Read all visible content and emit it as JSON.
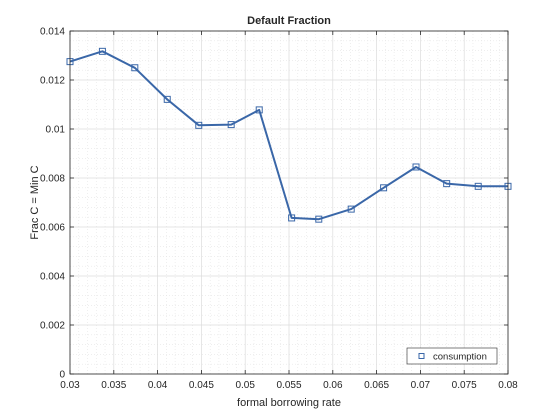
{
  "chart_data": {
    "type": "line",
    "title": "Default Fraction",
    "xlabel": "formal borrowing rate",
    "ylabel": "Frac C = Min C",
    "xlim": [
      0.03,
      0.08
    ],
    "ylim": [
      0,
      0.014
    ],
    "xticks": [
      "0.03",
      "0.035",
      "0.04",
      "0.045",
      "0.05",
      "0.055",
      "0.06",
      "0.065",
      "0.07",
      "0.075",
      "0.08"
    ],
    "yticks": [
      "0",
      "0.002",
      "0.004",
      "0.006",
      "0.008",
      "0.01",
      "0.012",
      "0.014"
    ],
    "grid": true,
    "minor_grid": true,
    "legend_position": "bottom-right",
    "series": [
      {
        "name": "consumption",
        "color": "#3a67a8",
        "marker": "square",
        "x": [
          0.03,
          0.0337,
          0.0374,
          0.0411,
          0.0447,
          0.0484,
          0.0516,
          0.0553,
          0.0584,
          0.0621,
          0.0658,
          0.0695,
          0.073,
          0.0766,
          0.08
        ],
        "y": [
          0.01275,
          0.01317,
          0.0125,
          0.01121,
          0.01015,
          0.01018,
          0.01078,
          0.00637,
          0.00632,
          0.00673,
          0.0076,
          0.00845,
          0.00777,
          0.00766,
          0.00766
        ]
      }
    ]
  }
}
